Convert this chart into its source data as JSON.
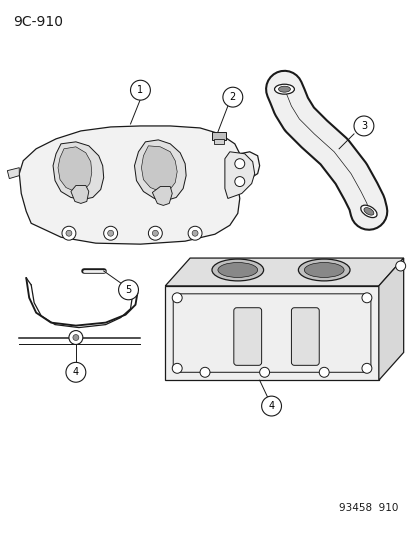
{
  "title": "9C-910",
  "footnote": "93458  910",
  "bg_color": "#ffffff",
  "line_color": "#1a1a1a",
  "title_fontsize": 10,
  "footnote_fontsize": 7.5,
  "callout_r": 0.02
}
